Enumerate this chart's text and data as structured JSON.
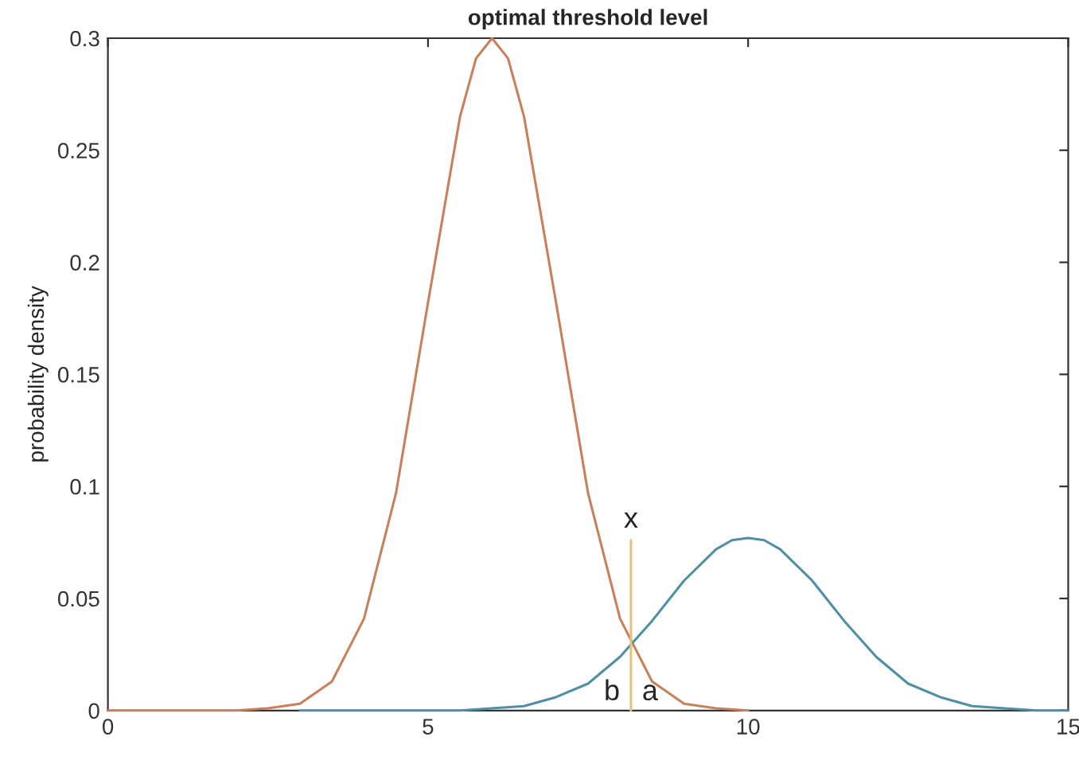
{
  "chart_data": {
    "type": "line",
    "title": "optimal threshold level",
    "ylabel": "probability density",
    "xlim": [
      0,
      15
    ],
    "xticks": [
      0,
      5,
      10,
      15
    ],
    "ylim": [
      0,
      0.3
    ],
    "yticks": [
      0,
      0.05,
      0.1,
      0.15,
      0.2,
      0.25,
      0.3
    ],
    "grid": false,
    "legend": false,
    "series": [
      {
        "color": "#c9805a",
        "x": [
          0,
          0.5,
          1,
          1.5,
          2,
          2.5,
          3,
          3.5,
          4,
          4.5,
          5,
          5.5,
          5.75,
          6,
          6.25,
          6.5,
          7,
          7.5,
          8,
          8.5,
          9,
          9.5,
          10
        ],
        "values": [
          0,
          0,
          0,
          0,
          0,
          0.001,
          0.003,
          0.013,
          0.041,
          0.097,
          0.182,
          0.265,
          0.291,
          0.3,
          0.291,
          0.265,
          0.182,
          0.097,
          0.041,
          0.013,
          0.003,
          0.001,
          0
        ]
      },
      {
        "color": "#4f8fa6",
        "x": [
          3,
          4,
          5,
          5.5,
          6,
          6.5,
          7,
          7.5,
          8,
          8.5,
          9,
          9.5,
          9.75,
          10,
          10.25,
          10.5,
          11,
          11.5,
          12,
          12.5,
          13,
          13.5,
          14,
          14.5,
          15
        ],
        "values": [
          0,
          0,
          0,
          0,
          0.001,
          0.002,
          0.006,
          0.012,
          0.024,
          0.04,
          0.058,
          0.072,
          0.076,
          0.077,
          0.076,
          0.072,
          0.058,
          0.04,
          0.024,
          0.012,
          0.006,
          0.002,
          0.001,
          0,
          0
        ]
      },
      {
        "color": "#e3c27a",
        "x": [
          8.17,
          8.17
        ],
        "values": [
          0,
          0.076
        ]
      }
    ],
    "annotations": [
      "x",
      "b",
      "a"
    ]
  }
}
